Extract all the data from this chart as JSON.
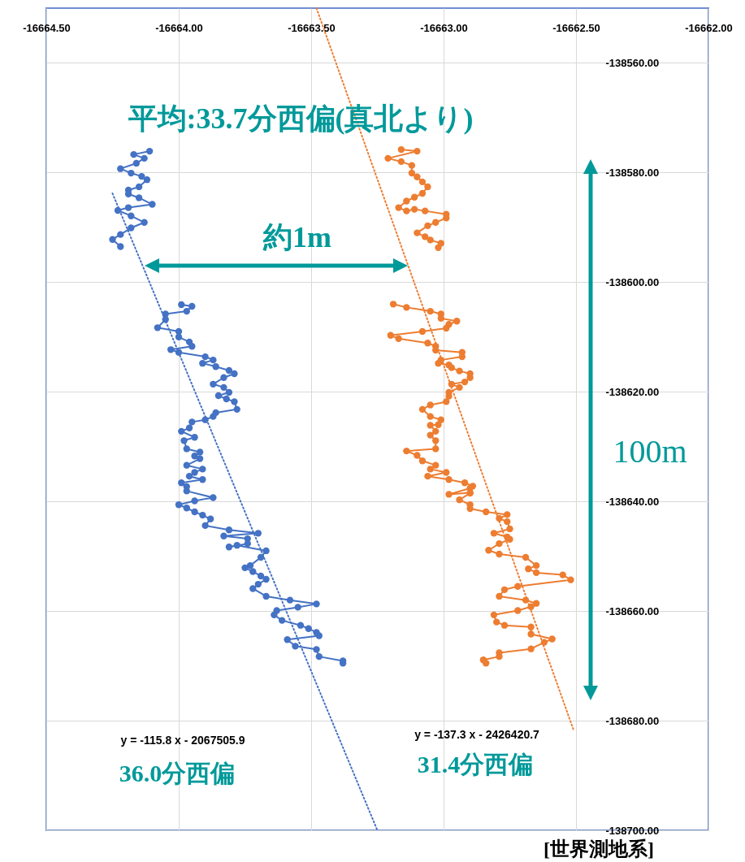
{
  "chart_data": {
    "type": "line",
    "xlim": [
      -16664.5,
      -16662.0
    ],
    "ylim": [
      -138700,
      -138550
    ],
    "xticks": [
      {
        "value": -16664.5,
        "label": "-16664.50"
      },
      {
        "value": -16664.0,
        "label": "-16664.00"
      },
      {
        "value": -16663.5,
        "label": "-16663.50"
      },
      {
        "value": -16663.0,
        "label": "-16663.00"
      },
      {
        "value": -16662.5,
        "label": "-16662.50"
      },
      {
        "value": -16662.0,
        "label": "-16662.00"
      }
    ],
    "yticks": [
      {
        "value": -138700,
        "label": "-138700.00"
      },
      {
        "value": -138680,
        "label": "-138680.00"
      },
      {
        "value": -138660,
        "label": "-138660.00"
      },
      {
        "value": -138640,
        "label": "-138640.00"
      },
      {
        "value": -138620,
        "label": "-138620.00"
      },
      {
        "value": -138600,
        "label": "-138600.00"
      },
      {
        "value": -138580,
        "label": "-138580.00"
      },
      {
        "value": -138560,
        "label": "-138560.00"
      }
    ],
    "grid": true,
    "marker": "circle",
    "line_style": "solid",
    "annotations": [
      "平均:33.7分西偏(真北より)",
      "約1m",
      "100m",
      "y = -115.8 x - 2067505.9",
      "36.0分西偏",
      "y = -137.3 x - 2426420.7",
      "31.4分西偏",
      "[世界測地系]"
    ],
    "series": [
      {
        "type": "line",
        "color": "#4472c4",
        "marker": "none",
        "line_style": "dotted",
        "x": [
          -16664.25,
          -16663.25
        ],
        "values": [
          -138583.8,
          -138700
        ]
      },
      {
        "type": "line",
        "color": "#ed7d31",
        "marker": "none",
        "line_style": "dotted",
        "x": [
          -16663.48,
          -16662.51
        ],
        "values": [
          -138550,
          -138681.6
        ]
      },
      {
        "color": "#4472c4",
        "x": [
          -16664.11,
          -16664.17,
          -16664.13,
          -16664.16,
          -16664.22,
          -16664.18,
          -16664.14,
          -16664.12,
          -16664.15,
          -16664.19,
          -16664.19,
          -16664.15,
          -16664.1,
          -16664.19,
          -16664.23,
          -16664.18,
          -16664.13,
          -16664.18,
          -16664.22,
          -16664.25,
          -16664.22
        ],
        "values": [
          -138576.1,
          -138576.7,
          -138577.4,
          -138578.3,
          -138579.3,
          -138580.1,
          -138580.7,
          -138581.3,
          -138582.6,
          -138583.2,
          -138583.9,
          -138584.6,
          -138585.8,
          -138586.4,
          -138586.9,
          -138587.9,
          -138589.1,
          -138590.1,
          -138591.3,
          -138592.2,
          -138593.5
        ]
      },
      {
        "color": "#4472c4",
        "x": [
          -16663.99,
          -16663.95,
          -16663.97,
          -16664.05,
          -16664.05,
          -16664.08,
          -16664.0,
          -16664.0,
          -16663.96,
          -16663.95,
          -16664.03,
          -16664.0,
          -16663.9,
          -16663.87,
          -16663.91,
          -16663.86,
          -16663.81,
          -16663.79,
          -16663.83,
          -16663.87,
          -16663.83,
          -16663.81,
          -16663.85,
          -16663.82,
          -16663.79,
          -16663.78,
          -16663.86,
          -16663.87,
          -16663.9,
          -16663.95,
          -16663.96,
          -16663.99,
          -16663.94,
          -16663.98,
          -16663.97,
          -16663.92,
          -16663.94,
          -16663.92,
          -16663.97,
          -16663.91,
          -16663.94,
          -16663.96,
          -16663.91,
          -16663.99,
          -16663.97,
          -16663.97,
          -16663.87,
          -16663.94,
          -16664.0,
          -16663.97,
          -16663.94,
          -16663.91,
          -16663.88,
          -16663.9,
          -16663.81,
          -16663.7,
          -16663.83,
          -16663.74,
          -16663.74,
          -16663.81,
          -16663.78,
          -16663.67,
          -16663.69,
          -16663.73,
          -16663.75,
          -16663.72,
          -16663.69,
          -16663.67,
          -16663.7,
          -16663.72,
          -16663.67,
          -16663.58,
          -16663.48,
          -16663.55,
          -16663.63,
          -16663.64,
          -16663.61,
          -16663.54,
          -16663.51,
          -16663.48,
          -16663.47,
          -16663.59,
          -16663.56,
          -16663.48,
          -16663.47,
          -16663.38,
          -16663.38
        ],
        "values": [
          -138604.1,
          -138604.4,
          -138605.3,
          -138605.8,
          -138606.8,
          -138608.3,
          -138609.0,
          -138610.0,
          -138610.9,
          -138611.7,
          -138612.3,
          -138612.8,
          -138613.6,
          -138614.2,
          -138614.8,
          -138615.4,
          -138616.1,
          -138616.7,
          -138617.4,
          -138618.6,
          -138619.2,
          -138620.1,
          -138620.7,
          -138621.3,
          -138621.8,
          -138623.2,
          -138623.8,
          -138624.5,
          -138625.1,
          -138625.5,
          -138626.6,
          -138627.2,
          -138628.3,
          -138628.9,
          -138630.4,
          -138631.0,
          -138631.7,
          -138632.2,
          -138633.4,
          -138634.1,
          -138634.7,
          -138635.4,
          -138636.0,
          -138636.6,
          -138637.3,
          -138638.1,
          -138639.3,
          -138639.9,
          -138640.6,
          -138641.2,
          -138641.9,
          -138642.5,
          -138643.2,
          -138644.4,
          -138645.2,
          -138645.8,
          -138646.3,
          -138646.8,
          -138647.7,
          -138648.3,
          -138648.0,
          -138649.0,
          -138650.2,
          -138651.7,
          -138652.1,
          -138652.8,
          -138653.6,
          -138654.2,
          -138655.1,
          -138655.9,
          -138657.3,
          -138658.0,
          -138658.7,
          -138659.3,
          -138659.9,
          -138660.7,
          -138661.7,
          -138662.6,
          -138663.2,
          -138663.9,
          -138664.5,
          -138665.2,
          -138666.4,
          -138667.0,
          -138668.3,
          -138669.1,
          -138669.5
        ]
      },
      {
        "color": "#ed7d31",
        "x": [
          -16663.16,
          -16663.1,
          -16663.21,
          -16663.16,
          -16663.12,
          -16663.12,
          -16663.1,
          -16663.08,
          -16663.06,
          -16663.08,
          -16663.11,
          -16663.14,
          -16663.17,
          -16663.14,
          -16663.11,
          -16663.07,
          -16662.99,
          -16662.99,
          -16663.03,
          -16663.06,
          -16663.1,
          -16663.07,
          -16663.05,
          -16663.01,
          -16663.02
        ],
        "values": [
          -138575.8,
          -138576.1,
          -138577.4,
          -138578.0,
          -138578.7,
          -138580.1,
          -138580.8,
          -138581.7,
          -138582.6,
          -138583.8,
          -138584.5,
          -138585.2,
          -138586.4,
          -138587.0,
          -138586.7,
          -138587.0,
          -138587.6,
          -138588.3,
          -138589.1,
          -138589.7,
          -138591.0,
          -138591.7,
          -138592.3,
          -138592.9,
          -138593.7
        ]
      },
      {
        "color": "#ed7d31",
        "x": [
          -16663.19,
          -16663.14,
          -16663.05,
          -16663.01,
          -16663.01,
          -16662.95,
          -16662.98,
          -16662.99,
          -16663.08,
          -16663.2,
          -16663.17,
          -16663.06,
          -16663.03,
          -16663.03,
          -16662.93,
          -16662.93,
          -16663.01,
          -16663.02,
          -16662.98,
          -16662.97,
          -16662.94,
          -16662.9,
          -16662.9,
          -16662.92,
          -16662.97,
          -16662.94,
          -16662.98,
          -16662.98,
          -16662.99,
          -16663.05,
          -16663.08,
          -16663.05,
          -16663.01,
          -16663.02,
          -16663.05,
          -16663.03,
          -16663.05,
          -16663.03,
          -16663.03,
          -16663.14,
          -16663.1,
          -16663.08,
          -16663.03,
          -16663.05,
          -16662.99,
          -16663.06,
          -16662.98,
          -16662.92,
          -16662.89,
          -16662.9,
          -16662.98,
          -16662.9,
          -16662.9,
          -16662.94,
          -16662.9,
          -16662.9,
          -16662.84,
          -16662.76,
          -16662.79,
          -16662.76,
          -16662.75,
          -16662.81,
          -16662.76,
          -16662.75,
          -16662.79,
          -16662.83,
          -16662.79,
          -16662.69,
          -16662.65,
          -16662.68,
          -16662.65,
          -16662.55,
          -16662.52,
          -16662.72,
          -16662.77,
          -16662.79,
          -16662.69,
          -16662.65,
          -16662.67,
          -16662.72,
          -16662.81,
          -16662.8,
          -16662.77,
          -16662.67,
          -16662.67,
          -16662.59,
          -16662.62,
          -16662.67,
          -16662.79,
          -16662.79,
          -16662.85,
          -16662.84
        ],
        "values": [
          -138604.0,
          -138604.6,
          -138605.3,
          -138605.8,
          -138606.6,
          -138607.1,
          -138607.7,
          -138608.4,
          -138609.0,
          -138609.7,
          -138610.3,
          -138611.1,
          -138611.7,
          -138612.4,
          -138612.8,
          -138613.6,
          -138614.2,
          -138614.8,
          -138615.1,
          -138615.6,
          -138616.2,
          -138616.7,
          -138617.4,
          -138618.2,
          -138618.6,
          -138619.2,
          -138620.1,
          -138620.8,
          -138621.8,
          -138622.4,
          -138623.2,
          -138624.5,
          -138625.1,
          -138626.0,
          -138626.1,
          -138627.2,
          -138627.9,
          -138628.9,
          -138630.4,
          -138630.8,
          -138631.6,
          -138632.6,
          -138633.4,
          -138634.1,
          -138634.7,
          -138635.4,
          -138636.0,
          -138636.6,
          -138637.2,
          -138637.6,
          -138638.7,
          -138638.4,
          -138638.5,
          -138639.7,
          -138640.6,
          -138641.3,
          -138641.9,
          -138642.4,
          -138643.1,
          -138643.7,
          -138645.0,
          -138645.8,
          -138646.5,
          -138646.9,
          -138647.7,
          -138648.9,
          -138649.6,
          -138650.2,
          -138651.7,
          -138652.3,
          -138653.0,
          -138653.4,
          -138654.3,
          -138655.5,
          -138656.1,
          -138657.3,
          -138658.0,
          -138658.6,
          -138659.2,
          -138659.9,
          -138660.7,
          -138662.0,
          -138662.6,
          -138662.9,
          -138664.2,
          -138665.1,
          -138665.7,
          -138666.9,
          -138667.6,
          -138668.3,
          -138668.9,
          -138669.5
        ]
      }
    ]
  }
}
